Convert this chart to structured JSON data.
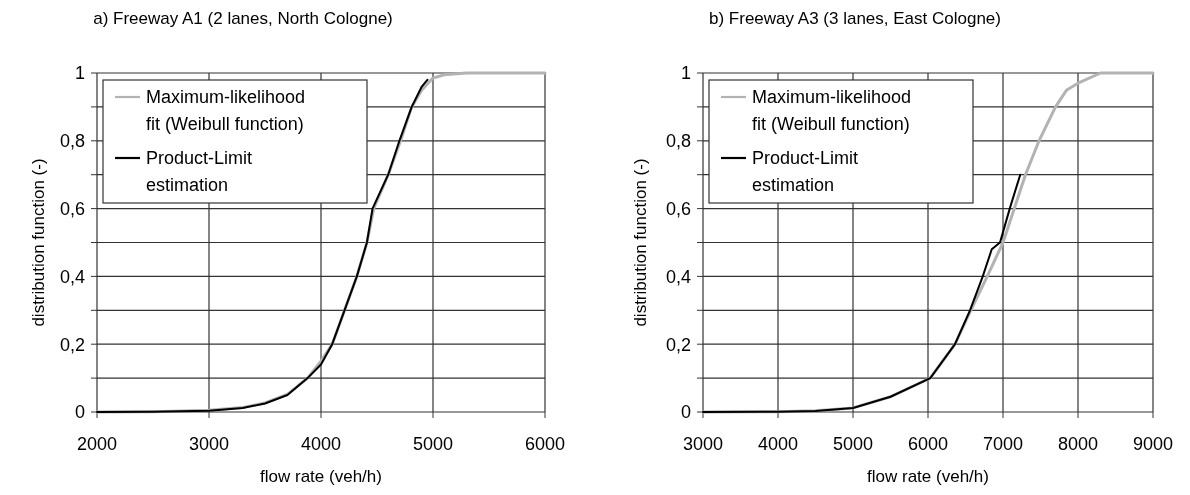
{
  "chart_data": [
    {
      "type": "line",
      "title": "a) Freeway A1 (2 lanes, North Cologne)",
      "xlabel": "flow rate (veh/h)",
      "ylabel": "distribution function (-)",
      "xlim": [
        2000,
        6000
      ],
      "xticks": [
        2000,
        3000,
        4000,
        5000,
        6000
      ],
      "ylim": [
        0,
        1
      ],
      "yticks": [
        {
          "value": 0,
          "label": "0"
        },
        {
          "value": 0.1,
          "label": null
        },
        {
          "value": 0.2,
          "label": "0,2"
        },
        {
          "value": 0.3,
          "label": null
        },
        {
          "value": 0.4,
          "label": "0,4"
        },
        {
          "value": 0.5,
          "label": null
        },
        {
          "value": 0.6,
          "label": "0,6"
        },
        {
          "value": 0.7,
          "label": null
        },
        {
          "value": 0.8,
          "label": "0,8"
        },
        {
          "value": 0.9,
          "label": null
        },
        {
          "value": 1,
          "label": "1"
        }
      ],
      "grid": true,
      "legend": "top left",
      "line_style": "solid",
      "marker": "none",
      "series": [
        {
          "name": "Maximum-likelihood fit (Weibull function)",
          "color": "#b3b3b3",
          "x": [
            2000,
            2500,
            3000,
            3300,
            3500,
            3700,
            3880,
            4000,
            4100,
            4210,
            4320,
            4410,
            4470,
            4600,
            4710,
            4810,
            4900,
            5000,
            5100,
            5300,
            6000
          ],
          "values": [
            0,
            0.001,
            0.005,
            0.013,
            0.027,
            0.052,
            0.1,
            0.15,
            0.2,
            0.3,
            0.4,
            0.5,
            0.6,
            0.7,
            0.8,
            0.9,
            0.95,
            0.985,
            0.995,
            1,
            1
          ]
        },
        {
          "name": "Product-Limit estimation",
          "color": "#000000",
          "x": [
            2000,
            2500,
            3000,
            3300,
            3500,
            3700,
            3880,
            4000,
            4100,
            4210,
            4320,
            4410,
            4460,
            4600,
            4700,
            4810,
            4900,
            4950
          ],
          "values": [
            0,
            0.001,
            0.004,
            0.012,
            0.025,
            0.05,
            0.1,
            0.14,
            0.2,
            0.3,
            0.4,
            0.5,
            0.6,
            0.7,
            0.8,
            0.9,
            0.96,
            0.98
          ]
        }
      ]
    },
    {
      "type": "line",
      "title": "b) Freeway A3 (3 lanes, East Cologne)",
      "xlabel": "flow rate (veh/h)",
      "ylabel": "distribution function (-)",
      "xlim": [
        3000,
        9000
      ],
      "xticks": [
        3000,
        4000,
        5000,
        6000,
        7000,
        8000,
        9000
      ],
      "ylim": [
        0,
        1
      ],
      "yticks": [
        {
          "value": 0,
          "label": "0"
        },
        {
          "value": 0.1,
          "label": null
        },
        {
          "value": 0.2,
          "label": "0,2"
        },
        {
          "value": 0.3,
          "label": null
        },
        {
          "value": 0.4,
          "label": "0,4"
        },
        {
          "value": 0.5,
          "label": null
        },
        {
          "value": 0.6,
          "label": "0,6"
        },
        {
          "value": 0.7,
          "label": null
        },
        {
          "value": 0.8,
          "label": "0,8"
        },
        {
          "value": 0.9,
          "label": null
        },
        {
          "value": 1,
          "label": "1"
        }
      ],
      "grid": true,
      "legend": "top left",
      "line_style": "solid",
      "marker": "none",
      "series": [
        {
          "name": "Maximum-likelihood fit (Weibull function)",
          "color": "#b3b3b3",
          "x": [
            3000,
            4000,
            4500,
            5000,
            5500,
            6030,
            6360,
            6570,
            6790,
            7000,
            7150,
            7300,
            7480,
            7700,
            7850,
            8000,
            8300,
            9000
          ],
          "values": [
            0,
            0.001,
            0.004,
            0.012,
            0.045,
            0.1,
            0.2,
            0.3,
            0.4,
            0.5,
            0.6,
            0.7,
            0.8,
            0.9,
            0.95,
            0.97,
            1,
            1
          ]
        },
        {
          "name": "Product-Limit estimation",
          "color": "#000000",
          "x": [
            3000,
            4000,
            4500,
            5000,
            5500,
            6030,
            6360,
            6560,
            6730,
            6850,
            6960,
            7090,
            7230
          ],
          "values": [
            0,
            0.001,
            0.003,
            0.012,
            0.045,
            0.1,
            0.2,
            0.3,
            0.4,
            0.48,
            0.5,
            0.6,
            0.7
          ]
        }
      ]
    }
  ]
}
